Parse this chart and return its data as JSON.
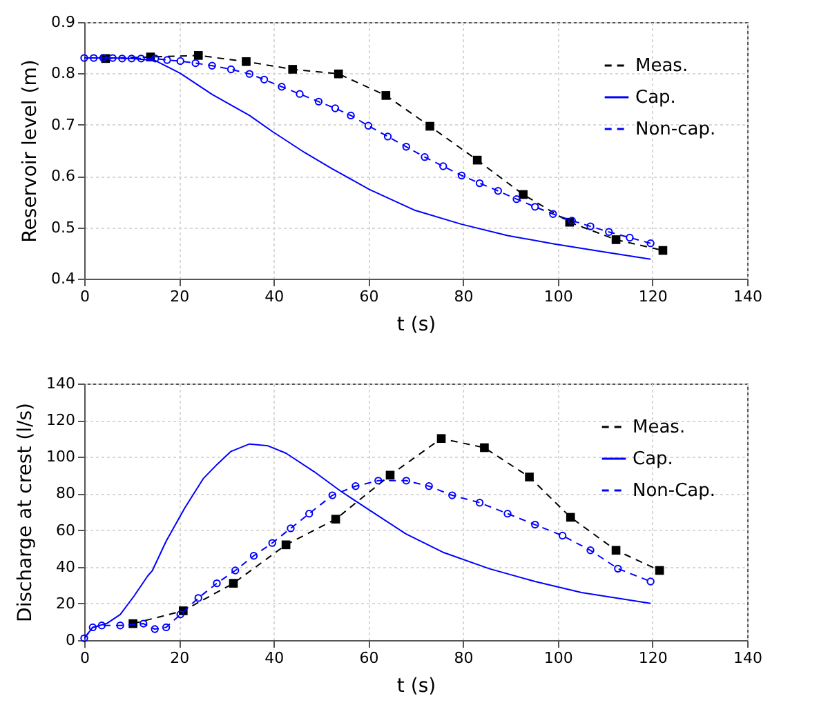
{
  "chart_data": [
    {
      "type": "line",
      "xlabel": "t (s)",
      "ylabel": "Reservoir level (m)",
      "xlim": [
        0,
        140
      ],
      "xticks": [
        0,
        20,
        40,
        60,
        80,
        100,
        120,
        140
      ],
      "ylim": [
        0.4,
        0.9
      ],
      "yticks": [
        0.4,
        0.5,
        0.6,
        0.7,
        0.8,
        0.9
      ],
      "grid": true,
      "legend": "top right",
      "series": [
        {
          "name": "Meas.",
          "color": "#000000",
          "marker": "square",
          "line_style": "dashed",
          "x": [
            4.5,
            14.0,
            24.1,
            34.2,
            44.0,
            53.7,
            63.7,
            73.0,
            83.0,
            92.7,
            102.5,
            112.3,
            122.2
          ],
          "values": [
            0.829,
            0.832,
            0.835,
            0.823,
            0.808,
            0.799,
            0.757,
            0.697,
            0.631,
            0.564,
            0.51,
            0.476,
            0.455
          ]
        },
        {
          "name": "Cap.",
          "color": "#0000ff",
          "marker": "none",
          "line_style": "solid",
          "x": [
            0,
            5,
            10,
            15,
            20.3,
            27,
            34.9,
            39.7,
            46.5,
            52.4,
            60.2,
            69.9,
            79.7,
            89.4,
            99.1,
            109.8,
            119.6
          ],
          "values": [
            0.83,
            0.83,
            0.829,
            0.825,
            0.8,
            0.759,
            0.718,
            0.687,
            0.646,
            0.614,
            0.574,
            0.533,
            0.506,
            0.484,
            0.468,
            0.452,
            0.438
          ]
        },
        {
          "name": "Non-cap.",
          "color": "#0000ff",
          "marker": "circle",
          "line_style": "dashed",
          "x": [
            0,
            2,
            4,
            6,
            8,
            10,
            12,
            15,
            17.5,
            20.3,
            23.5,
            27,
            31,
            34.9,
            38,
            41.7,
            45.5,
            49.5,
            53,
            56.3,
            60,
            64.1,
            68,
            71.9,
            75.8,
            79.7,
            83.5,
            87.4,
            91.3,
            95.2,
            99,
            103,
            106.9,
            110.8,
            115.2,
            119.6
          ],
          "values": [
            0.83,
            0.83,
            0.83,
            0.83,
            0.829,
            0.829,
            0.829,
            0.829,
            0.826,
            0.824,
            0.82,
            0.815,
            0.808,
            0.799,
            0.788,
            0.774,
            0.76,
            0.745,
            0.732,
            0.718,
            0.698,
            0.677,
            0.657,
            0.637,
            0.619,
            0.601,
            0.586,
            0.571,
            0.555,
            0.54,
            0.526,
            0.513,
            0.502,
            0.491,
            0.48,
            0.469
          ]
        }
      ]
    },
    {
      "type": "line",
      "xlabel": "t (s)",
      "ylabel": "Discharge at crest (l/s)",
      "xlim": [
        0,
        140
      ],
      "xticks": [
        0,
        20,
        40,
        60,
        80,
        100,
        120,
        140
      ],
      "ylim": [
        0,
        140
      ],
      "yticks": [
        0,
        20,
        40,
        60,
        80,
        100,
        120,
        140
      ],
      "grid": true,
      "legend": "top right",
      "series": [
        {
          "name": "Meas.",
          "color": "#000000",
          "marker": "square",
          "line_style": "dashed",
          "x": [
            10.3,
            20.9,
            31.5,
            42.6,
            53.1,
            64.6,
            75.4,
            84.5,
            94.0,
            102.7,
            112.3,
            121.5
          ],
          "values": [
            9,
            16,
            31,
            52,
            66,
            90,
            110,
            105,
            89,
            67,
            49,
            38
          ]
        },
        {
          "name": "Cap.",
          "color": "#0000ff",
          "marker": "none",
          "line_style": "solid",
          "x": [
            0,
            1.8,
            4.7,
            7.6,
            10.5,
            13.4,
            14.4,
            17.3,
            21.2,
            25.1,
            28.1,
            31,
            34.9,
            38.8,
            42.6,
            48.5,
            54.3,
            60.2,
            67.9,
            75.7,
            85.5,
            95.2,
            105,
            119.6
          ],
          "values": [
            1,
            7,
            9,
            14,
            24,
            35,
            38,
            54,
            72,
            88,
            96,
            103,
            107,
            106,
            102,
            92,
            81,
            71,
            58,
            48,
            39,
            32,
            26,
            20
          ]
        },
        {
          "name": "Non-Cap.",
          "color": "#0000ff",
          "marker": "circle",
          "line_style": "dashed",
          "x": [
            0,
            1.8,
            3.7,
            7.6,
            12.5,
            14.9,
            17.3,
            20.3,
            24.1,
            28,
            31.9,
            35.8,
            39.7,
            43.6,
            47.5,
            52.4,
            57.3,
            62.1,
            68,
            72.8,
            77.7,
            83.5,
            89.4,
            95.2,
            101,
            106.9,
            112.7,
            119.6
          ],
          "values": [
            1,
            7,
            8,
            8,
            9,
            6,
            7,
            14,
            23,
            31,
            38,
            46,
            53,
            61,
            69,
            79,
            84,
            87,
            87,
            84,
            79,
            75,
            69,
            63,
            57,
            49,
            39,
            32
          ]
        }
      ]
    }
  ]
}
